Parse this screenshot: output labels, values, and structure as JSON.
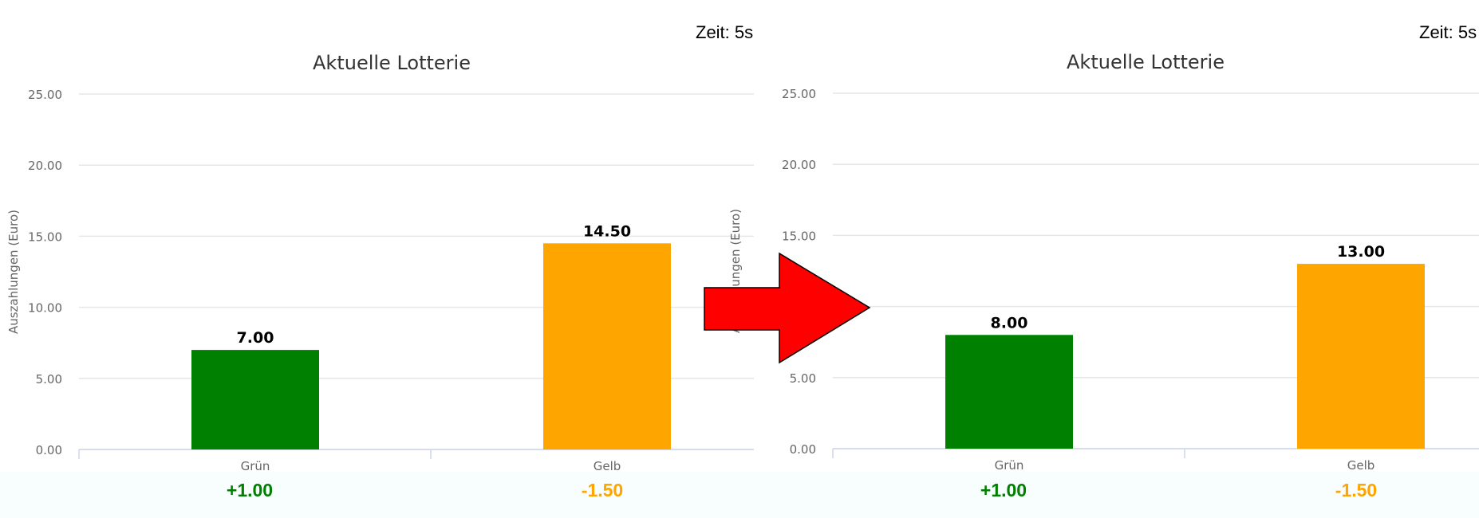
{
  "chart_data": [
    {
      "type": "bar",
      "title": "Aktuelle Lotterie",
      "ylabel": "Auszahlungen (Euro)",
      "xlabel": "",
      "ylim": [
        0,
        25
      ],
      "yticks": [
        "0.00",
        "5.00",
        "10.00",
        "15.00",
        "20.00",
        "25.00"
      ],
      "grid": true,
      "categories": [
        "Grün",
        "Gelb"
      ],
      "values": [
        7.0,
        14.5
      ],
      "value_labels": [
        "7.00",
        "14.50"
      ],
      "colors": [
        "#008000",
        "#FFA500"
      ],
      "timer": "Zeit: 5s",
      "deltas": [
        {
          "text": "+1.00",
          "color": "#008000"
        },
        {
          "text": "-1.50",
          "color": "#FFA500"
        }
      ]
    },
    {
      "type": "bar",
      "title": "Aktuelle Lotterie",
      "ylabel": "Auszahlungen (Euro)",
      "xlabel": "",
      "ylim": [
        0,
        25
      ],
      "yticks": [
        "0.00",
        "5.00",
        "10.00",
        "15.00",
        "20.00",
        "25.00"
      ],
      "grid": true,
      "categories": [
        "Grün",
        "Gelb"
      ],
      "values": [
        8.0,
        13.0
      ],
      "value_labels": [
        "8.00",
        "13.00"
      ],
      "colors": [
        "#008000",
        "#FFA500"
      ],
      "timer": "Zeit: 5s",
      "deltas": [
        {
          "text": "+1.00",
          "color": "#008000"
        },
        {
          "text": "-1.50",
          "color": "#FFA500"
        }
      ]
    }
  ],
  "arrow": {
    "icon": "right-arrow-icon",
    "color": "#FF0000"
  }
}
